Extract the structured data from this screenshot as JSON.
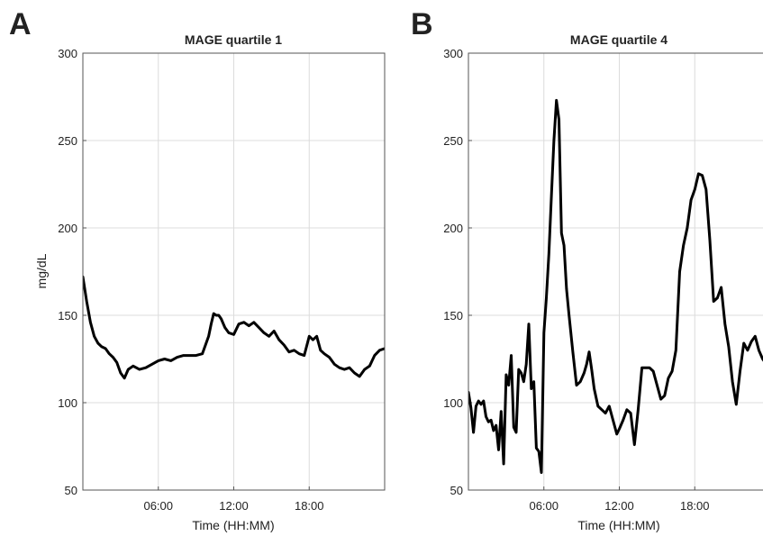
{
  "chart_data": [
    {
      "type": "line",
      "panel_label": "A",
      "title": "MAGE quartile 1",
      "xlabel": "Time (HH:MM)",
      "ylabel": "mg/dL",
      "xlim": [
        0,
        24
      ],
      "ylim": [
        50,
        300
      ],
      "xticks": [
        6,
        12,
        18
      ],
      "xtick_labels": [
        "06:00",
        "12:00",
        "18:00"
      ],
      "yticks": [
        50,
        100,
        150,
        200,
        250,
        300
      ],
      "ytick_labels": [
        "50",
        "100",
        "150",
        "200",
        "250",
        "300"
      ],
      "grid": true,
      "line_color": "#000000",
      "series": [
        {
          "x": [
            0,
            0.3,
            0.6,
            0.9,
            1.2,
            1.5,
            1.8,
            2.1,
            2.4,
            2.7,
            3.0,
            3.3,
            3.6,
            4.0,
            4.5,
            5.0,
            5.5,
            6.0,
            6.5,
            7.0,
            7.5,
            8.0,
            8.5,
            9.0,
            9.5,
            10.0,
            10.2,
            10.4,
            10.6,
            10.8,
            11.0,
            11.3,
            11.6,
            12.0,
            12.4,
            12.8,
            13.2,
            13.6,
            14.0,
            14.4,
            14.8,
            15.2,
            15.6,
            16.0,
            16.4,
            16.8,
            17.2,
            17.6,
            18.0,
            18.3,
            18.6,
            18.9,
            19.2,
            19.6,
            20.0,
            20.4,
            20.8,
            21.2,
            21.6,
            22.0,
            22.4,
            22.8,
            23.2,
            23.6,
            24.0
          ],
          "y": [
            172,
            158,
            146,
            138,
            134,
            132,
            131,
            128,
            126,
            123,
            117,
            114,
            119,
            121,
            119,
            120,
            122,
            124,
            125,
            124,
            126,
            127,
            127,
            127,
            128,
            138,
            145,
            151,
            150,
            150,
            148,
            143,
            140,
            139,
            145,
            146,
            144,
            146,
            143,
            140,
            138,
            141,
            136,
            133,
            129,
            130,
            128,
            127,
            138,
            136,
            138,
            130,
            128,
            126,
            122,
            120,
            119,
            120,
            117,
            115,
            119,
            121,
            127,
            130,
            131
          ]
        }
      ]
    },
    {
      "type": "line",
      "panel_label": "B",
      "title": "MAGE quartile 4",
      "xlabel": "Time (HH:MM)",
      "ylabel": "",
      "xlim": [
        0,
        24
      ],
      "ylim": [
        50,
        300
      ],
      "xticks": [
        6,
        12,
        18
      ],
      "xtick_labels": [
        "06:00",
        "12:00",
        "18:00"
      ],
      "yticks": [
        50,
        100,
        150,
        200,
        250,
        300
      ],
      "ytick_labels": [
        "50",
        "100",
        "150",
        "200",
        "250",
        "300"
      ],
      "grid": true,
      "line_color": "#000000",
      "series": [
        {
          "x": [
            0,
            0.2,
            0.4,
            0.6,
            0.8,
            1.0,
            1.2,
            1.4,
            1.6,
            1.8,
            2.0,
            2.2,
            2.4,
            2.6,
            2.8,
            3.0,
            3.2,
            3.4,
            3.6,
            3.8,
            4.0,
            4.2,
            4.4,
            4.6,
            4.8,
            5.0,
            5.2,
            5.4,
            5.6,
            5.8,
            6.0,
            6.2,
            6.4,
            6.6,
            6.8,
            7.0,
            7.2,
            7.4,
            7.6,
            7.8,
            8.0,
            8.3,
            8.6,
            8.9,
            9.2,
            9.4,
            9.6,
            9.8,
            10.0,
            10.3,
            10.6,
            10.9,
            11.2,
            11.5,
            11.8,
            12.0,
            12.3,
            12.6,
            12.9,
            13.2,
            13.5,
            13.8,
            14.1,
            14.4,
            14.7,
            15.0,
            15.3,
            15.6,
            15.9,
            16.2,
            16.5,
            16.8,
            17.1,
            17.4,
            17.7,
            18.0,
            18.3,
            18.6,
            18.9,
            19.2,
            19.5,
            19.8,
            20.1,
            20.4,
            20.7,
            21.0,
            21.3,
            21.6,
            21.9,
            22.2,
            22.5,
            22.8,
            23.1,
            23.4,
            23.7,
            24.0
          ],
          "y": [
            106,
            97,
            83,
            98,
            101,
            99,
            101,
            92,
            89,
            90,
            84,
            87,
            73,
            95,
            65,
            116,
            110,
            127,
            86,
            83,
            119,
            117,
            112,
            122,
            145,
            108,
            112,
            74,
            72,
            60,
            140,
            160,
            185,
            218,
            250,
            273,
            262,
            197,
            190,
            165,
            150,
            129,
            110,
            112,
            117,
            122,
            129,
            119,
            108,
            98,
            96,
            94,
            98,
            90,
            82,
            85,
            90,
            96,
            94,
            76,
            96,
            120,
            120,
            120,
            118,
            110,
            102,
            104,
            114,
            118,
            130,
            175,
            190,
            200,
            216,
            222,
            231,
            230,
            222,
            193,
            158,
            160,
            166,
            145,
            132,
            112,
            99,
            118,
            134,
            130,
            135,
            138,
            130,
            125,
            122,
            120
          ]
        }
      ]
    }
  ]
}
